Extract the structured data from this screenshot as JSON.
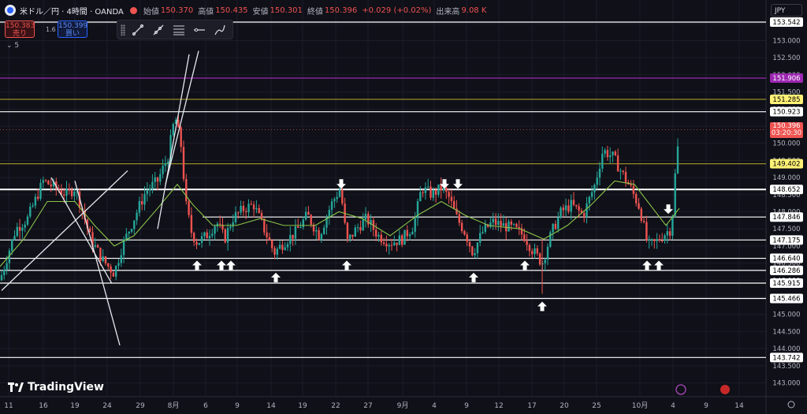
{
  "header": {
    "title": "米ドル／円 · 4時間 · OANDA",
    "labels": {
      "open": "始値",
      "high": "高値",
      "low": "安値",
      "close": "終値",
      "volume": "出来高"
    },
    "open": "150.370",
    "high": "150.435",
    "low": "150.301",
    "close": "150.396",
    "change": "+0.029 (+0.02%)",
    "volume": "9.08 K"
  },
  "quote": {
    "sell_price": "150.383",
    "sell_label": "売り",
    "buy_price": "150.399",
    "buy_label": "買い",
    "spread": "1.6"
  },
  "indicator_count": "5",
  "currency": "JPY",
  "brand": "TradingView",
  "chart_data": {
    "type": "candlestick",
    "colors": {
      "up": "#26a69a",
      "down": "#ef5350",
      "ma": "#8bc34a",
      "arrows": "#ffffff"
    },
    "x_ticks": [
      "11",
      "16",
      "19",
      "24",
      "29",
      "8月",
      "6",
      "9",
      "14",
      "19",
      "22",
      "27",
      "9月",
      "4",
      "9",
      "12",
      "17",
      "20",
      "25",
      "10月",
      "4",
      "9",
      "14"
    ],
    "y_ticks": [
      "143.000",
      "143.500",
      "144.000",
      "144.500",
      "145.000",
      "145.500",
      "146.000",
      "146.500",
      "147.000",
      "147.500",
      "148.000",
      "148.500",
      "149.000",
      "149.500",
      "150.000",
      "150.500",
      "151.000",
      "151.500",
      "152.000",
      "152.500",
      "153.000",
      "153.500"
    ],
    "ylim": [
      142.9,
      153.8
    ],
    "horizontal_lines": [
      {
        "value": 153.542,
        "label": "153.542",
        "color": "#ffffff",
        "label_bg": "#ffffff",
        "label_fg": "#000000",
        "full": true
      },
      {
        "value": 151.906,
        "label": "151.906",
        "color": "#9c27b0",
        "label_bg": "#9c27b0",
        "label_fg": "#ffffff",
        "full": true
      },
      {
        "value": 151.285,
        "label": "151.285",
        "color": "#a59a2a",
        "label_bg": "#fff176",
        "label_fg": "#000000",
        "full": true
      },
      {
        "value": 150.923,
        "label": "150.923",
        "color": "#ffffff",
        "label_bg": "#ffffff",
        "label_fg": "#000000",
        "full": true
      },
      {
        "value": 149.402,
        "label": "149.402",
        "color": "#a59a2a",
        "label_bg": "#fff176",
        "label_fg": "#000000",
        "full": true
      },
      {
        "value": 148.652,
        "label": "148.652",
        "color": "#ffffff",
        "label_bg": "#ffffff",
        "label_fg": "#000000",
        "full": true
      },
      {
        "value": 147.846,
        "label": "147.846",
        "color": "#ffffff",
        "label_bg": "#ffffff",
        "label_fg": "#000000",
        "full": false
      },
      {
        "value": 147.175,
        "label": "147.175",
        "color": "#ffffff",
        "label_bg": "#ffffff",
        "label_fg": "#000000",
        "full": true
      },
      {
        "value": 146.64,
        "label": "146.640",
        "color": "#ffffff",
        "label_bg": "#ffffff",
        "label_fg": "#000000",
        "full": true
      },
      {
        "value": 146.286,
        "label": "146.286",
        "color": "#ffffff",
        "label_bg": "#ffffff",
        "label_fg": "#000000",
        "full": true
      },
      {
        "value": 145.915,
        "label": "145.915",
        "color": "#ffffff",
        "label_bg": "#ffffff",
        "label_fg": "#000000",
        "full": true
      },
      {
        "value": 145.466,
        "label": "145.466",
        "color": "#ffffff",
        "label_bg": "#ffffff",
        "label_fg": "#000000",
        "full": true
      },
      {
        "value": 143.742,
        "label": "143.742",
        "color": "#ffffff",
        "label_bg": "#ffffff",
        "label_fg": "#000000",
        "full": true
      }
    ],
    "current_price": {
      "value": "150.396",
      "countdown": "03:20:30"
    },
    "price_path": [
      [
        0,
        146.0
      ],
      [
        20,
        147.5
      ],
      [
        35,
        147.8
      ],
      [
        55,
        148.9
      ],
      [
        70,
        148.7
      ],
      [
        85,
        148.5
      ],
      [
        95,
        148.7
      ],
      [
        105,
        148.0
      ],
      [
        115,
        147.2
      ],
      [
        130,
        146.6
      ],
      [
        145,
        146.2
      ],
      [
        155,
        147.0
      ],
      [
        170,
        147.8
      ],
      [
        185,
        148.6
      ],
      [
        200,
        148.9
      ],
      [
        213,
        149.6
      ],
      [
        222,
        150.8
      ],
      [
        230,
        149.9
      ],
      [
        236,
        148.2
      ],
      [
        243,
        147.4
      ],
      [
        250,
        147.1
      ],
      [
        262,
        147.3
      ],
      [
        275,
        147.7
      ],
      [
        285,
        147.2
      ],
      [
        295,
        147.8
      ],
      [
        310,
        148.1
      ],
      [
        322,
        148.2
      ],
      [
        335,
        147.5
      ],
      [
        348,
        146.8
      ],
      [
        360,
        147.1
      ],
      [
        375,
        147.4
      ],
      [
        390,
        147.9
      ],
      [
        405,
        147.3
      ],
      [
        420,
        148.2
      ],
      [
        432,
        148.7
      ],
      [
        440,
        147.1
      ],
      [
        452,
        147.5
      ],
      [
        465,
        147.8
      ],
      [
        480,
        147.3
      ],
      [
        495,
        147.1
      ],
      [
        510,
        147.2
      ],
      [
        525,
        147.6
      ],
      [
        535,
        148.7
      ],
      [
        548,
        148.5
      ],
      [
        560,
        148.7
      ],
      [
        570,
        148.4
      ],
      [
        580,
        147.8
      ],
      [
        590,
        147.4
      ],
      [
        600,
        146.8
      ],
      [
        612,
        147.4
      ],
      [
        625,
        147.7
      ],
      [
        638,
        147.6
      ],
      [
        652,
        147.5
      ],
      [
        665,
        147.3
      ],
      [
        675,
        146.9
      ],
      [
        688,
        146.5
      ],
      [
        700,
        147.4
      ],
      [
        712,
        148.0
      ],
      [
        725,
        148.2
      ],
      [
        740,
        147.9
      ],
      [
        755,
        148.8
      ],
      [
        765,
        149.8
      ],
      [
        778,
        149.6
      ],
      [
        790,
        149.1
      ],
      [
        800,
        148.7
      ],
      [
        812,
        148.1
      ],
      [
        822,
        147.0
      ],
      [
        832,
        147.1
      ],
      [
        845,
        147.4
      ],
      [
        852,
        147.5
      ],
      [
        858,
        149.5
      ],
      [
        863,
        150.4
      ]
    ],
    "ma_path": [
      [
        0,
        146.4
      ],
      [
        30,
        147.2
      ],
      [
        60,
        148.3
      ],
      [
        95,
        148.3
      ],
      [
        120,
        147.6
      ],
      [
        145,
        147.0
      ],
      [
        170,
        147.3
      ],
      [
        200,
        148.1
      ],
      [
        225,
        148.8
      ],
      [
        245,
        148.2
      ],
      [
        270,
        147.6
      ],
      [
        300,
        147.6
      ],
      [
        330,
        147.8
      ],
      [
        360,
        147.6
      ],
      [
        400,
        147.6
      ],
      [
        430,
        148.0
      ],
      [
        460,
        147.8
      ],
      [
        495,
        147.3
      ],
      [
        530,
        147.9
      ],
      [
        560,
        148.3
      ],
      [
        590,
        147.9
      ],
      [
        620,
        147.6
      ],
      [
        660,
        147.5
      ],
      [
        690,
        147.2
      ],
      [
        720,
        147.6
      ],
      [
        750,
        148.2
      ],
      [
        780,
        148.9
      ],
      [
        805,
        148.8
      ],
      [
        825,
        148.2
      ],
      [
        845,
        147.6
      ],
      [
        862,
        148.1
      ]
    ],
    "up_arrows_x": [
      250,
      281,
      293,
      350,
      440,
      601,
      666,
      821,
      836
    ],
    "down_arrows_x": [
      433,
      564,
      581,
      848
    ],
    "spike_arrow": {
      "x": 688,
      "value": 145.6
    },
    "trend_lines": [
      {
        "from": [
          2,
          145.7
        ],
        "to": [
          162,
          149.2
        ]
      },
      {
        "from": [
          142,
          145.9
        ],
        "to": [
          65,
          149.0
        ]
      },
      {
        "from": [
          95,
          148.9
        ],
        "to": [
          152,
          144.1
        ]
      },
      {
        "from": [
          200,
          147.5
        ],
        "to": [
          240,
          152.6
        ]
      },
      {
        "from": [
          210,
          148.8
        ],
        "to": [
          252,
          152.7
        ]
      }
    ]
  }
}
